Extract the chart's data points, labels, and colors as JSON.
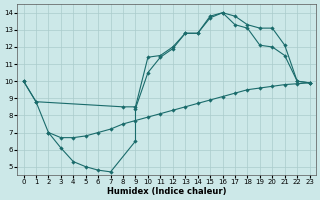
{
  "xlabel": "Humidex (Indice chaleur)",
  "xlim": [
    -0.5,
    23.5
  ],
  "ylim": [
    4.5,
    14.5
  ],
  "xticks": [
    0,
    1,
    2,
    3,
    4,
    5,
    6,
    7,
    8,
    9,
    10,
    11,
    12,
    13,
    14,
    15,
    16,
    17,
    18,
    19,
    20,
    21,
    22,
    23
  ],
  "yticks": [
    5,
    6,
    7,
    8,
    9,
    10,
    11,
    12,
    13,
    14
  ],
  "bg_color": "#cce8e8",
  "grid_color": "#aacccc",
  "line_color": "#1a6b6b",
  "line1_x": [
    0,
    1,
    2,
    3,
    4,
    5,
    6,
    7,
    9,
    9,
    10,
    11,
    12,
    13,
    14,
    15,
    16,
    17,
    18,
    19,
    20,
    21,
    22,
    23
  ],
  "line1_y": [
    10.0,
    8.8,
    7.0,
    6.1,
    5.3,
    5.0,
    4.8,
    4.7,
    6.5,
    8.4,
    10.5,
    11.4,
    11.9,
    12.8,
    12.8,
    13.8,
    14.0,
    13.3,
    13.1,
    12.1,
    12.0,
    11.5,
    10.0,
    9.9
  ],
  "line2_x": [
    0,
    1,
    8,
    9,
    10,
    11,
    12,
    13,
    14,
    15,
    16,
    17,
    18,
    19,
    20,
    21,
    22,
    23
  ],
  "line2_y": [
    10.0,
    8.8,
    8.5,
    8.5,
    11.4,
    11.5,
    12.0,
    12.8,
    12.8,
    13.7,
    14.0,
    13.8,
    13.3,
    13.1,
    13.1,
    12.1,
    10.0,
    9.9
  ],
  "line3_x": [
    2,
    3,
    4,
    5,
    6,
    7,
    8,
    9,
    10,
    11,
    12,
    13,
    14,
    15,
    16,
    17,
    18,
    19,
    20,
    21,
    22,
    23
  ],
  "line3_y": [
    7.0,
    6.7,
    6.7,
    6.8,
    7.0,
    7.2,
    7.5,
    7.7,
    7.9,
    8.1,
    8.3,
    8.5,
    8.7,
    8.9,
    9.1,
    9.3,
    9.5,
    9.6,
    9.7,
    9.8,
    9.85,
    9.9
  ]
}
